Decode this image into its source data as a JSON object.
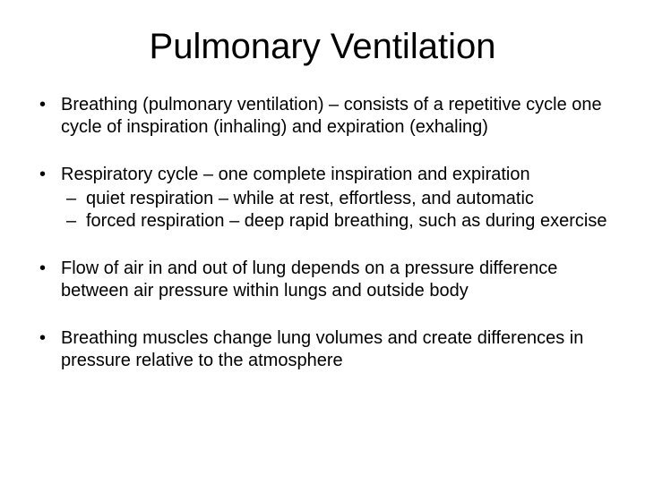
{
  "title": "Pulmonary Ventilation",
  "bullets": [
    {
      "text": "Breathing (pulmonary ventilation) – consists of a repetitive cycle one cycle of inspiration (inhaling)  and expiration (exhaling)"
    },
    {
      "text": "Respiratory cycle – one complete inspiration and expiration",
      "sub": [
        "quiet respiration – while at rest, effortless, and automatic",
        "forced respiration – deep rapid breathing, such as during exercise"
      ]
    },
    {
      "text": "Flow of air in and out of lung depends on a pressure difference between air pressure within lungs and outside body"
    },
    {
      "text": "Breathing muscles change lung volumes and create differences in pressure relative to the atmosphere"
    }
  ]
}
